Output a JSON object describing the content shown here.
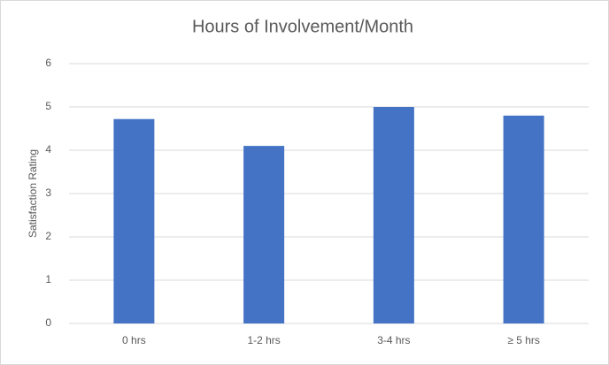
{
  "chart_data": {
    "type": "bar",
    "title": "Hours of Involvement/Month",
    "y_label": "Satisfaction Rating",
    "categories": [
      "0 hrs",
      "1-2 hrs",
      "3-4 hrs",
      "≥ 5 hrs"
    ],
    "values": [
      4.72,
      4.1,
      5.0,
      4.8
    ],
    "color": "#4472c4",
    "ylim": [
      0,
      6
    ],
    "yticks": [
      0,
      1,
      2,
      3,
      4,
      5,
      6
    ],
    "grid": true
  }
}
